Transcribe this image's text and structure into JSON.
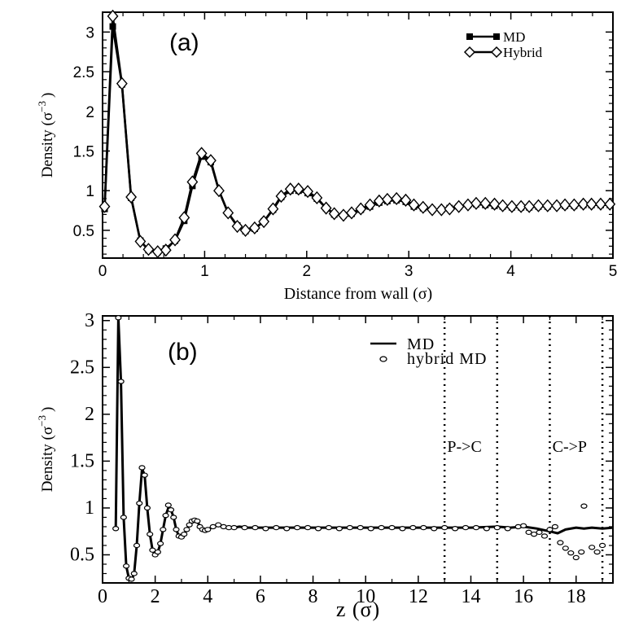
{
  "chart_data": [
    {
      "type": "line",
      "panel_label": "(a)",
      "xlabel": "Distance from wall (σ)",
      "ylabel": "Density (σ",
      "ylabel_exp": "−3",
      "ylabel_close": ")",
      "xlim": [
        0,
        5
      ],
      "ylim": [
        0.15,
        3.25
      ],
      "xticks": [
        "0",
        "1",
        "2",
        "3",
        "4",
        "5"
      ],
      "yticks": [
        "0.5",
        "1",
        "1.5",
        "2",
        "2.5",
        "3"
      ],
      "legend_position": "top-right",
      "series": [
        {
          "name": "MD",
          "marker": "filled-square",
          "x": [
            0.02,
            0.1,
            0.19,
            0.28,
            0.37,
            0.45,
            0.54,
            0.62,
            0.71,
            0.8,
            0.88,
            0.97,
            1.06,
            1.14,
            1.23,
            1.32,
            1.4,
            1.49,
            1.58,
            1.67,
            1.75,
            1.84,
            1.92,
            2.01,
            2.1,
            2.19,
            2.27,
            2.36,
            2.44,
            2.53,
            2.62,
            2.71,
            2.79,
            2.88,
            2.97,
            3.05,
            3.14,
            3.23,
            3.32,
            3.4,
            3.49,
            3.58,
            3.66,
            3.75,
            3.84,
            3.92,
            4.01,
            4.1,
            4.18,
            4.27,
            4.36,
            4.45,
            4.53,
            4.62,
            4.71,
            4.79,
            4.88,
            4.97
          ],
          "y": [
            0.77,
            3.07,
            2.34,
            0.91,
            0.37,
            0.25,
            0.23,
            0.27,
            0.37,
            0.62,
            1.06,
            1.43,
            1.36,
            1.0,
            0.72,
            0.56,
            0.49,
            0.52,
            0.61,
            0.76,
            0.92,
            1.0,
            1.0,
            0.97,
            0.9,
            0.78,
            0.7,
            0.69,
            0.71,
            0.76,
            0.8,
            0.85,
            0.87,
            0.88,
            0.86,
            0.8,
            0.78,
            0.76,
            0.76,
            0.78,
            0.8,
            0.82,
            0.83,
            0.82,
            0.81,
            0.8,
            0.79,
            0.79,
            0.79,
            0.8,
            0.8,
            0.81,
            0.81,
            0.81,
            0.82,
            0.82,
            0.82,
            0.82
          ]
        },
        {
          "name": "Hybrid",
          "marker": "open-diamond",
          "x": [
            0.02,
            0.1,
            0.19,
            0.28,
            0.37,
            0.45,
            0.54,
            0.62,
            0.71,
            0.8,
            0.88,
            0.97,
            1.06,
            1.14,
            1.23,
            1.32,
            1.4,
            1.49,
            1.58,
            1.67,
            1.75,
            1.84,
            1.92,
            2.01,
            2.1,
            2.19,
            2.27,
            2.36,
            2.44,
            2.53,
            2.62,
            2.71,
            2.79,
            2.88,
            2.97,
            3.05,
            3.14,
            3.23,
            3.32,
            3.4,
            3.49,
            3.58,
            3.66,
            3.75,
            3.84,
            3.92,
            4.01,
            4.1,
            4.18,
            4.27,
            4.36,
            4.45,
            4.53,
            4.62,
            4.71,
            4.79,
            4.88,
            4.97
          ],
          "y": [
            0.8,
            3.2,
            2.35,
            0.92,
            0.36,
            0.26,
            0.23,
            0.25,
            0.38,
            0.66,
            1.11,
            1.47,
            1.38,
            1.0,
            0.72,
            0.55,
            0.5,
            0.53,
            0.61,
            0.77,
            0.93,
            1.02,
            1.02,
            0.99,
            0.91,
            0.78,
            0.71,
            0.69,
            0.72,
            0.77,
            0.82,
            0.87,
            0.89,
            0.9,
            0.88,
            0.82,
            0.79,
            0.76,
            0.76,
            0.77,
            0.8,
            0.82,
            0.84,
            0.84,
            0.83,
            0.81,
            0.8,
            0.8,
            0.8,
            0.81,
            0.81,
            0.81,
            0.82,
            0.82,
            0.83,
            0.83,
            0.83,
            0.83
          ]
        }
      ]
    },
    {
      "type": "line",
      "panel_label": "(b)",
      "xlabel": "z (σ)",
      "ylabel": "Density (σ",
      "ylabel_exp": "−3",
      "ylabel_close": ")",
      "xlim": [
        0,
        19.4
      ],
      "ylim": [
        0.2,
        3.05
      ],
      "xticks": [
        "0",
        "2",
        "4",
        "6",
        "8",
        "10",
        "12",
        "14",
        "16",
        "18"
      ],
      "yticks": [
        "0.5",
        "1",
        "1.5",
        "2",
        "2.5",
        "3"
      ],
      "legend_position": "top-right",
      "vlines": [
        13,
        15,
        17,
        19
      ],
      "annotations": [
        {
          "text": "P->C",
          "x": 13.1,
          "y": 1.6
        },
        {
          "text": "C->P",
          "x": 17.1,
          "y": 1.6
        }
      ],
      "series": [
        {
          "name": "MD",
          "marker": "none",
          "x": [
            0.5,
            0.6,
            0.7,
            0.8,
            0.9,
            1.0,
            1.1,
            1.2,
            1.3,
            1.4,
            1.5,
            1.6,
            1.7,
            1.8,
            1.9,
            2.0,
            2.1,
            2.2,
            2.3,
            2.4,
            2.5,
            2.6,
            2.7,
            2.8,
            2.9,
            3.0,
            3.1,
            3.2,
            3.3,
            3.4,
            3.5,
            3.6,
            3.7,
            3.8,
            3.9,
            4.0,
            4.2,
            4.4,
            4.6,
            4.8,
            5.0,
            5.2,
            5.5,
            6,
            7,
            8,
            9,
            10,
            11,
            12,
            13,
            14,
            15,
            15.5,
            16,
            16.5,
            17,
            17.3,
            17.6,
            18,
            18.3,
            18.6,
            19,
            19.4
          ],
          "y": [
            0.78,
            3.03,
            2.35,
            0.9,
            0.38,
            0.25,
            0.23,
            0.3,
            0.6,
            1.05,
            1.42,
            1.35,
            1.0,
            0.72,
            0.55,
            0.5,
            0.53,
            0.62,
            0.77,
            0.92,
            1.0,
            0.98,
            0.9,
            0.77,
            0.7,
            0.69,
            0.72,
            0.77,
            0.82,
            0.86,
            0.88,
            0.86,
            0.8,
            0.77,
            0.76,
            0.77,
            0.8,
            0.82,
            0.8,
            0.79,
            0.79,
            0.8,
            0.79,
            0.79,
            0.79,
            0.79,
            0.79,
            0.79,
            0.79,
            0.79,
            0.79,
            0.79,
            0.8,
            0.79,
            0.8,
            0.78,
            0.75,
            0.73,
            0.77,
            0.79,
            0.78,
            0.79,
            0.78,
            0.79
          ]
        },
        {
          "name": "hybrid MD",
          "marker": "open-circle",
          "x": [
            0.5,
            0.6,
            0.7,
            0.8,
            0.9,
            1.0,
            1.1,
            1.2,
            1.3,
            1.4,
            1.5,
            1.6,
            1.7,
            1.8,
            1.9,
            2.0,
            2.1,
            2.2,
            2.3,
            2.4,
            2.5,
            2.6,
            2.7,
            2.8,
            2.9,
            3.0,
            3.1,
            3.2,
            3.3,
            3.4,
            3.5,
            3.6,
            3.7,
            3.8,
            3.9,
            4.0,
            4.2,
            4.4,
            4.6,
            4.8,
            5.0,
            5.4,
            5.8,
            6.2,
            6.6,
            7.0,
            7.4,
            7.8,
            8.2,
            8.6,
            9.0,
            9.4,
            9.8,
            10.2,
            10.6,
            11.0,
            11.4,
            11.8,
            12.2,
            12.6,
            13.0,
            13.4,
            13.8,
            14.2,
            14.6,
            15.0,
            15.4,
            15.8,
            16.0,
            16.2,
            16.4,
            16.6,
            16.8,
            17.0,
            17.2,
            17.4,
            17.6,
            17.8,
            18.0,
            18.2,
            18.3,
            18.6,
            18.8,
            19.0
          ],
          "y": [
            0.78,
            3.03,
            2.35,
            0.9,
            0.38,
            0.25,
            0.24,
            0.3,
            0.6,
            1.05,
            1.43,
            1.35,
            1.0,
            0.72,
            0.55,
            0.5,
            0.53,
            0.62,
            0.77,
            0.92,
            1.03,
            0.98,
            0.9,
            0.77,
            0.7,
            0.69,
            0.72,
            0.77,
            0.82,
            0.86,
            0.87,
            0.86,
            0.8,
            0.77,
            0.76,
            0.77,
            0.8,
            0.82,
            0.8,
            0.79,
            0.79,
            0.79,
            0.79,
            0.78,
            0.79,
            0.78,
            0.79,
            0.79,
            0.78,
            0.79,
            0.78,
            0.79,
            0.79,
            0.78,
            0.79,
            0.79,
            0.78,
            0.79,
            0.79,
            0.78,
            0.79,
            0.78,
            0.79,
            0.79,
            0.78,
            0.79,
            0.78,
            0.8,
            0.81,
            0.74,
            0.72,
            0.74,
            0.7,
            0.77,
            0.8,
            0.63,
            0.57,
            0.52,
            0.47,
            0.53,
            1.02,
            0.58,
            0.53,
            0.6
          ]
        }
      ]
    }
  ]
}
